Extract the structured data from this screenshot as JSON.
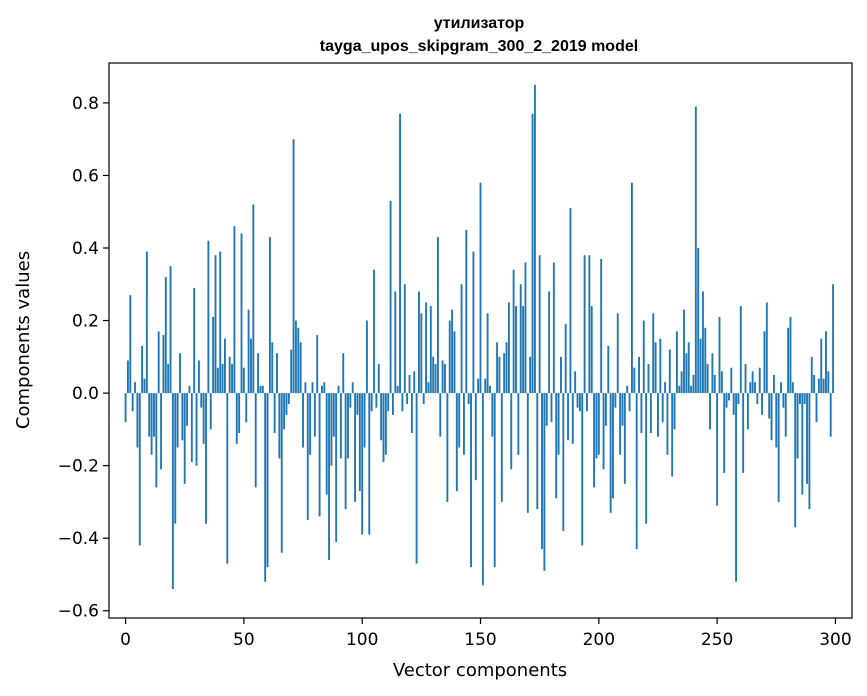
{
  "chart_data": {
    "type": "bar",
    "title": "утилизатор",
    "subtitle": "tayga_upos_skipgram_300_2_2019 model",
    "xlabel": "Vector components",
    "ylabel": "Components values",
    "xlim": [
      -7,
      307
    ],
    "ylim": [
      -0.62,
      0.91
    ],
    "x_ticks": [
      0,
      50,
      100,
      150,
      200,
      250,
      300
    ],
    "x_tick_labels": [
      "0",
      "50",
      "100",
      "150",
      "200",
      "250",
      "300"
    ],
    "y_ticks": [
      -0.6,
      -0.4,
      -0.2,
      0.0,
      0.2,
      0.4,
      0.6,
      0.8
    ],
    "y_tick_labels": [
      "−0.6",
      "−0.4",
      "−0.2",
      "0.0",
      "0.2",
      "0.4",
      "0.6",
      "0.8"
    ],
    "grid": false,
    "bar_color": "#1f77b4",
    "series": [
      {
        "values": [
          -0.08,
          0.09,
          0.27,
          -0.05,
          0.03,
          -0.15,
          -0.42,
          0.13,
          0.04,
          0.39,
          -0.12,
          -0.17,
          -0.12,
          -0.26,
          0.17,
          -0.21,
          0.16,
          0.32,
          0.08,
          0.35,
          -0.54,
          -0.36,
          -0.15,
          0.11,
          -0.13,
          -0.25,
          -0.09,
          0.02,
          -0.19,
          0.29,
          -0.2,
          0.09,
          -0.04,
          -0.14,
          -0.36,
          0.42,
          -0.1,
          0.21,
          0.38,
          0.07,
          0.39,
          0.08,
          0.15,
          -0.47,
          0.1,
          0.08,
          0.46,
          -0.14,
          -0.11,
          0.44,
          0.07,
          -0.08,
          0.23,
          0.15,
          0.52,
          -0.26,
          0.11,
          0.02,
          0.02,
          -0.52,
          -0.48,
          0.43,
          0.14,
          -0.11,
          0.11,
          -0.18,
          -0.44,
          -0.1,
          -0.06,
          -0.03,
          0.12,
          0.7,
          0.2,
          0.18,
          0.14,
          -0.15,
          0.03,
          -0.35,
          -0.17,
          0.03,
          -0.12,
          0.16,
          -0.34,
          0.02,
          0.03,
          -0.28,
          -0.46,
          -0.2,
          -0.12,
          -0.41,
          0.02,
          -0.18,
          0.11,
          -0.32,
          -0.18,
          -0.04,
          0.03,
          -0.3,
          -0.06,
          -0.27,
          -0.39,
          -0.15,
          0.2,
          -0.39,
          -0.05,
          0.34,
          -0.04,
          0.08,
          -0.13,
          -0.19,
          -0.17,
          -0.05,
          0.53,
          -0.06,
          0.28,
          0.02,
          0.77,
          -0.05,
          0.3,
          -0.03,
          0.05,
          -0.11,
          0.06,
          -0.47,
          0.28,
          0.22,
          -0.03,
          0.25,
          0.03,
          0.24,
          0.1,
          0.08,
          0.43,
          -0.12,
          0.09,
          0.08,
          -0.3,
          0.2,
          0.23,
          0.17,
          -0.27,
          -0.15,
          0.3,
          -0.17,
          0.45,
          -0.03,
          -0.48,
          0.39,
          -0.24,
          0.04,
          0.58,
          -0.53,
          0.04,
          0.22,
          0.02,
          -0.12,
          -0.48,
          0.14,
          0.1,
          -0.3,
          0.11,
          0.14,
          0.25,
          -0.21,
          0.34,
          0.24,
          -0.17,
          0.3,
          0.24,
          0.36,
          -0.33,
          0.1,
          0.77,
          0.85,
          -0.32,
          0.38,
          -0.43,
          -0.49,
          -0.09,
          0.28,
          -0.08,
          0.36,
          -0.29,
          -0.17,
          0.1,
          -0.38,
          0.19,
          -0.13,
          0.51,
          -0.14,
          0.06,
          -0.04,
          -0.05,
          -0.42,
          0.38,
          -0.05,
          0.38,
          0.24,
          -0.26,
          -0.18,
          -0.17,
          0.37,
          -0.21,
          -0.09,
          0.13,
          -0.33,
          -0.29,
          -0.04,
          0.22,
          -0.17,
          -0.09,
          -0.25,
          0.02,
          -0.05,
          0.58,
          0.07,
          -0.43,
          0.1,
          -0.11,
          0.2,
          -0.36,
          0.08,
          -0.11,
          0.22,
          0.14,
          -0.12,
          0.15,
          -0.08,
          0.03,
          -0.17,
          0.12,
          -0.23,
          -0.1,
          0.17,
          0.02,
          0.06,
          0.23,
          0.11,
          0.14,
          0.02,
          0.05,
          0.79,
          0.4,
          0.15,
          0.28,
          0.18,
          0.08,
          -0.1,
          0.11,
          0.05,
          -0.31,
          0.21,
          0.06,
          -0.22,
          -0.04,
          -0.02,
          0.07,
          -0.06,
          -0.52,
          -0.03,
          0.24,
          -0.22,
          0.08,
          -0.1,
          0.03,
          0.06,
          0.03,
          -0.03,
          0.07,
          -0.06,
          0.17,
          0.25,
          -0.07,
          -0.13,
          0.05,
          -0.15,
          -0.3,
          0.03,
          -0.04,
          -0.12,
          0.18,
          0.21,
          0.03,
          -0.37,
          -0.18,
          -0.03,
          -0.28,
          -0.03,
          -0.25,
          -0.32,
          0.1,
          0.05,
          -0.08,
          0.04,
          0.15,
          0.04,
          0.17,
          0.06,
          -0.12,
          0.3
        ]
      }
    ]
  }
}
